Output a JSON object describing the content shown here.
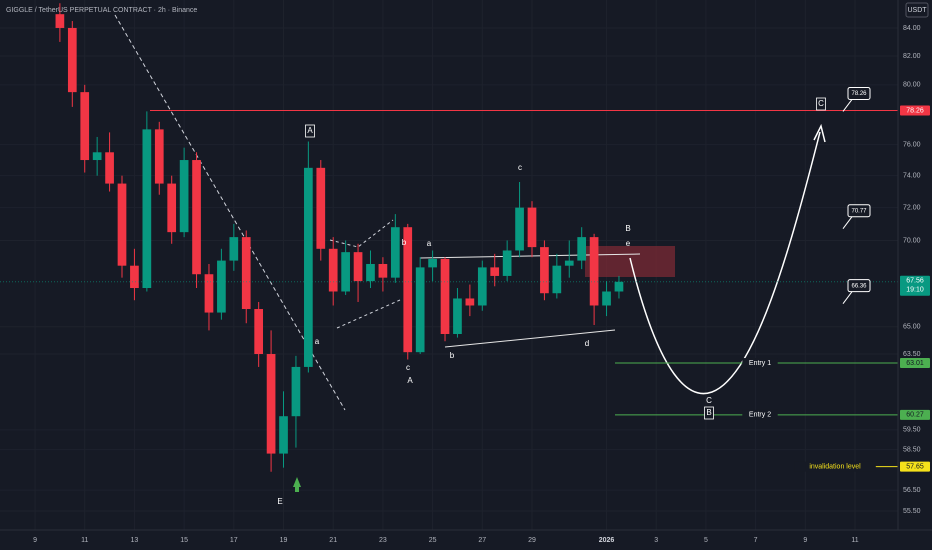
{
  "chart_data": {
    "type": "candlestick",
    "title": "GIGGLE / TetherUS PERPETUAL CONTRACT · 2h · Binance",
    "currency": "USDT",
    "log_scale": true,
    "grid": true,
    "up_color": "#089981",
    "down_color": "#f23645",
    "xlim": [
      -1.41,
      34.73
    ],
    "ylim": [
      54.6,
      86.04
    ],
    "xticks": [
      {
        "value": 0,
        "label": "9"
      },
      {
        "value": 2,
        "label": "11"
      },
      {
        "value": 4,
        "label": "13"
      },
      {
        "value": 6,
        "label": "15"
      },
      {
        "value": 8,
        "label": "17"
      },
      {
        "value": 10,
        "label": "19"
      },
      {
        "value": 12,
        "label": "21"
      },
      {
        "value": 14,
        "label": "23"
      },
      {
        "value": 16,
        "label": "25"
      },
      {
        "value": 18,
        "label": "27"
      },
      {
        "value": 20,
        "label": "29"
      },
      {
        "value": 23,
        "label": "2026"
      },
      {
        "value": 25,
        "label": "3"
      },
      {
        "value": 27,
        "label": "5"
      },
      {
        "value": 29,
        "label": "7"
      },
      {
        "value": 31,
        "label": "9"
      },
      {
        "value": 33,
        "label": "11"
      }
    ],
    "yticks": [
      {
        "value": 84,
        "label": "84.00"
      },
      {
        "value": 82,
        "label": "82.00"
      },
      {
        "value": 80,
        "label": "80.00"
      },
      {
        "value": 76,
        "label": "76.00"
      },
      {
        "value": 74,
        "label": "74.00"
      },
      {
        "value": 72,
        "label": "72.00"
      },
      {
        "value": 70,
        "label": "70.00"
      },
      {
        "value": 65,
        "label": "65.00"
      },
      {
        "value": 63.5,
        "label": "63.50"
      },
      {
        "value": 59.5,
        "label": "59.50"
      },
      {
        "value": 58.5,
        "label": "58.50"
      },
      {
        "value": 56.5,
        "label": "56.50"
      },
      {
        "value": 55.5,
        "label": "55.50"
      }
    ],
    "x": [
      1.0,
      1.5,
      2.0,
      2.5,
      3.0,
      3.5,
      4.0,
      4.5,
      5.0,
      5.5,
      6.0,
      6.5,
      7.0,
      7.5,
      8.0,
      8.5,
      9.0,
      9.5,
      10.0,
      10.5,
      11.0,
      11.5,
      12.0,
      12.5,
      13.0,
      13.5,
      14.0,
      14.5,
      15.0,
      15.5,
      16.0,
      16.5,
      17.0,
      17.5,
      18.0,
      18.5,
      19.0,
      19.5,
      20.0,
      20.5,
      21.0,
      21.5,
      22.0,
      22.5,
      23.0,
      23.5
    ],
    "open": [
      85.0,
      84.0,
      79.5,
      75.0,
      75.5,
      73.5,
      68.5,
      67.2,
      77.0,
      73.5,
      70.5,
      75.0,
      68.0,
      65.8,
      68.8,
      70.2,
      66.0,
      63.5,
      58.3,
      60.2,
      62.8,
      74.5,
      69.5,
      67.0,
      69.3,
      67.6,
      68.6,
      67.8,
      70.8,
      63.6,
      68.4,
      68.9,
      64.6,
      66.6,
      66.2,
      68.4,
      67.9,
      69.4,
      72.0,
      69.6,
      66.9,
      68.5,
      68.8,
      70.2,
      66.2,
      67.0
    ],
    "high": [
      85.8,
      84.5,
      80.0,
      76.5,
      76.8,
      74.0,
      69.5,
      78.2,
      77.5,
      74.0,
      75.8,
      75.5,
      68.6,
      69.5,
      71.0,
      70.6,
      66.4,
      64.8,
      61.5,
      63.4,
      76.2,
      75.0,
      70.2,
      70.0,
      69.8,
      69.4,
      69.0,
      71.6,
      71.0,
      69.0,
      69.4,
      69.0,
      67.2,
      67.4,
      68.8,
      69.2,
      70.0,
      73.6,
      72.4,
      70.0,
      69.2,
      70.0,
      70.8,
      70.4,
      67.6,
      67.9
    ],
    "low": [
      83.0,
      78.5,
      74.2,
      74.0,
      73.0,
      67.8,
      66.5,
      67.0,
      72.8,
      69.8,
      70.2,
      67.2,
      64.8,
      65.4,
      68.2,
      65.2,
      62.8,
      57.4,
      57.6,
      58.6,
      62.5,
      68.8,
      66.2,
      66.8,
      66.4,
      67.2,
      67.0,
      67.5,
      63.2,
      63.5,
      67.6,
      64.2,
      64.4,
      65.6,
      65.9,
      67.3,
      67.6,
      69.0,
      69.0,
      66.5,
      66.6,
      67.8,
      68.3,
      65.1,
      65.6,
      66.6
    ],
    "close": [
      84.0,
      79.5,
      75.0,
      75.5,
      73.5,
      68.5,
      67.2,
      77.0,
      73.5,
      70.5,
      75.0,
      68.0,
      65.8,
      68.8,
      70.2,
      66.0,
      63.5,
      58.3,
      60.2,
      62.8,
      74.5,
      69.5,
      67.0,
      69.3,
      67.6,
      68.6,
      67.8,
      70.8,
      63.6,
      68.4,
      68.9,
      64.6,
      66.6,
      66.2,
      68.4,
      67.9,
      69.4,
      72.0,
      69.6,
      66.9,
      68.5,
      68.8,
      70.2,
      66.2,
      67.0,
      67.56
    ],
    "last_price": 67.56,
    "countdown": "19:10",
    "levels": [
      {
        "value": 78.26,
        "color": "#f23645"
      },
      {
        "value": 63.01,
        "label": "Entry 1",
        "color": "#4caf50"
      },
      {
        "value": 60.27,
        "label": "Entry 2",
        "color": "#4caf50"
      },
      {
        "value": 57.65,
        "label": "invalidation level",
        "color": "#f5e11b"
      }
    ],
    "targets": [
      78.26,
      70.77,
      66.36
    ],
    "wave_labels": [
      {
        "text": "A",
        "boxed": true
      },
      {
        "text": "a",
        "boxed": false
      },
      {
        "text": "b",
        "boxed": false
      },
      {
        "text": "c",
        "boxed": false
      },
      {
        "text": "A",
        "boxed": false
      },
      {
        "text": "a",
        "boxed": false
      },
      {
        "text": "b",
        "boxed": false
      },
      {
        "text": "c",
        "boxed": false
      },
      {
        "text": "d",
        "boxed": false
      },
      {
        "text": "B",
        "boxed": false
      },
      {
        "text": "e",
        "boxed": false
      },
      {
        "text": "C",
        "boxed": false
      },
      {
        "text": "B",
        "boxed": true
      },
      {
        "text": "C",
        "boxed": true
      },
      {
        "text": "E",
        "boxed": false
      }
    ]
  }
}
